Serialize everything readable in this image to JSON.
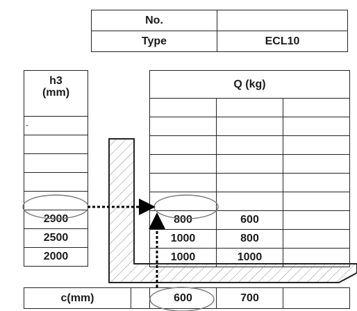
{
  "id_table": {
    "rows": [
      {
        "label": "No.",
        "value": ""
      },
      {
        "label": "Type",
        "value": "ECL10"
      }
    ]
  },
  "h3_table": {
    "header_line1": "h3",
    "header_line2": "(mm)",
    "values": [
      "",
      "",
      "",
      "",
      "",
      "2900",
      "2500",
      "2000"
    ]
  },
  "q_table": {
    "header": "Q (kg)",
    "rows": [
      [
        "",
        "",
        ""
      ],
      [
        "",
        "",
        ""
      ],
      [
        "",
        "",
        ""
      ],
      [
        "",
        "",
        ""
      ],
      [
        "",
        "",
        ""
      ],
      [
        "",
        "",
        ""
      ],
      [
        "800",
        "600",
        ""
      ],
      [
        "1000",
        "800",
        ""
      ],
      [
        "1000",
        "1000",
        ""
      ]
    ]
  },
  "c_table": {
    "label": "c(mm)",
    "values": [
      "600",
      "700",
      ""
    ]
  },
  "stray_mark": "ˬ",
  "highlighted": {
    "h3": "2900",
    "q": "800",
    "c": "600"
  },
  "colors": {
    "grid": "#222222",
    "hatch": "#888888",
    "arrow": "#000000"
  }
}
